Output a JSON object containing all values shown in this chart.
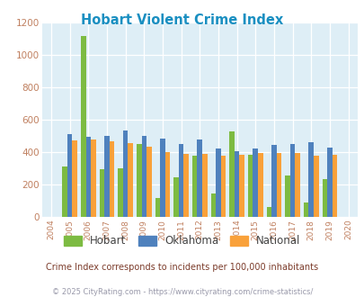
{
  "title": "Hobart Violent Crime Index",
  "years": [
    2004,
    2005,
    2006,
    2007,
    2008,
    2009,
    2010,
    2011,
    2012,
    2013,
    2014,
    2015,
    2016,
    2017,
    2018,
    2019,
    2020
  ],
  "hobart": [
    null,
    310,
    1115,
    295,
    300,
    450,
    115,
    245,
    375,
    145,
    525,
    385,
    60,
    255,
    90,
    230,
    null
  ],
  "oklahoma": [
    null,
    510,
    495,
    500,
    530,
    500,
    480,
    450,
    475,
    420,
    405,
    420,
    445,
    450,
    460,
    425,
    null
  ],
  "national": [
    null,
    470,
    475,
    465,
    455,
    430,
    400,
    390,
    390,
    375,
    385,
    395,
    395,
    395,
    375,
    380,
    null
  ],
  "hobart_color": "#7dbb42",
  "oklahoma_color": "#4f81bd",
  "national_color": "#f9a13a",
  "bg_color": "#deeef6",
  "ylim": [
    0,
    1200
  ],
  "yticks": [
    0,
    200,
    400,
    600,
    800,
    1000,
    1200
  ],
  "subtitle": "Crime Index corresponds to incidents per 100,000 inhabitants",
  "footer": "© 2025 CityRating.com - https://www.cityrating.com/crime-statistics/",
  "title_color": "#1a8fc1",
  "subtitle_color": "#7b3b2a",
  "footer_color": "#9999aa",
  "tick_color": "#c08060",
  "bar_width": 0.27
}
